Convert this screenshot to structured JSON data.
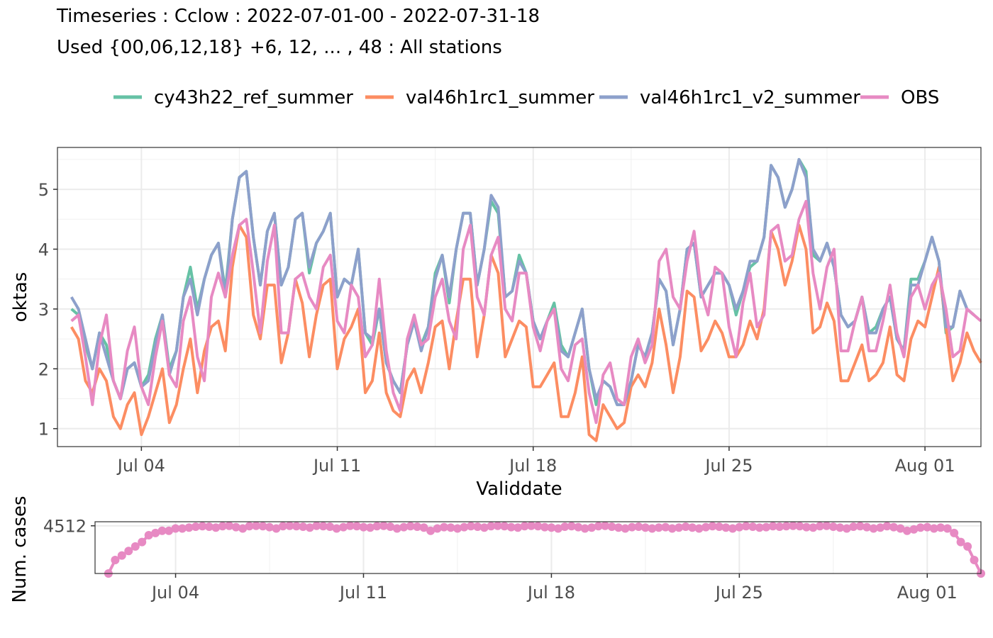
{
  "title": {
    "line1": "Timeseries : Cclow : 2022-07-01-00 - 2022-07-31-18",
    "line2": "Used {00,06,12,18} +6, 12, ... , 48 : All stations"
  },
  "legend": {
    "items": [
      {
        "name": "cy43h22_ref_summer",
        "color": "#66c2a5"
      },
      {
        "name": "val46h1rc1_summer",
        "color": "#fc8d62"
      },
      {
        "name": "val46h1rc1_v2_summer",
        "color": "#8da0cb"
      },
      {
        "name": "OBS",
        "color": "#e78ac3"
      }
    ]
  },
  "chart_data": [
    {
      "type": "line",
      "xlabel": "Validdate",
      "ylabel": "oktas",
      "ylim": [
        0.7,
        5.7
      ],
      "y_ticks": [
        1,
        2,
        3,
        4,
        5
      ],
      "x_ticks": [
        "Jul 04",
        "Jul 11",
        "Jul 18",
        "Jul 25",
        "Aug 01"
      ],
      "x": {
        "start": "2022-07-01T12:00",
        "step_hours": 6,
        "count": 130
      },
      "grid": true,
      "legend_position": "top",
      "series": [
        {
          "name": "cy43h22_ref_summer",
          "color": "#66c2a5",
          "values": [
            3.0,
            2.9,
            2.4,
            2.0,
            2.6,
            2.4,
            1.8,
            1.5,
            2.0,
            2.1,
            1.7,
            1.9,
            2.5,
            2.9,
            2.0,
            2.3,
            3.2,
            3.7,
            3.0,
            3.5,
            3.9,
            4.1,
            3.3,
            4.5,
            5.2,
            5.3,
            4.2,
            3.4,
            4.3,
            4.6,
            3.4,
            3.7,
            4.5,
            4.6,
            3.6,
            4.1,
            4.3,
            4.6,
            3.2,
            3.5,
            3.4,
            4.0,
            2.6,
            2.4,
            3.0,
            2.1,
            1.8,
            1.6,
            2.4,
            2.8,
            2.4,
            2.7,
            3.6,
            3.9,
            3.1,
            4.0,
            4.6,
            4.6,
            3.4,
            4.0,
            4.8,
            4.6,
            3.2,
            3.3,
            3.9,
            3.6,
            2.8,
            2.5,
            2.8,
            3.1,
            2.4,
            2.2,
            2.6,
            3.0,
            2.0,
            1.4,
            1.8,
            1.7,
            1.4,
            1.4,
            1.8,
            2.4,
            2.2,
            2.6,
            3.5,
            3.3,
            2.4,
            3.0,
            4.0,
            4.1,
            3.2,
            3.4,
            3.6,
            3.6,
            3.4,
            2.9,
            3.3,
            3.7,
            3.8,
            4.2,
            5.4,
            5.2,
            4.7,
            5.0,
            5.5,
            5.3,
            3.9,
            3.8,
            4.1,
            3.7,
            2.9,
            2.7,
            2.8,
            3.2,
            2.6,
            2.7,
            3.0,
            3.2,
            2.5,
            2.3,
            3.5,
            3.5,
            3.8,
            4.2,
            3.8,
            2.6,
            2.7,
            3.3,
            3.0,
            2.9
          ]
        },
        {
          "name": "val46h1rc1_summer",
          "color": "#fc8d62",
          "values": [
            2.7,
            2.5,
            1.8,
            1.6,
            2.0,
            1.8,
            1.2,
            1.0,
            1.4,
            1.6,
            0.9,
            1.2,
            1.6,
            2.0,
            1.1,
            1.4,
            2.0,
            2.5,
            1.6,
            2.3,
            2.7,
            2.8,
            2.3,
            3.7,
            4.4,
            4.2,
            2.9,
            2.5,
            3.4,
            3.4,
            2.1,
            2.6,
            3.5,
            3.1,
            2.2,
            2.9,
            3.4,
            3.5,
            2.0,
            2.5,
            2.7,
            3.0,
            1.6,
            1.8,
            2.6,
            1.6,
            1.3,
            1.2,
            1.8,
            2.0,
            1.6,
            2.1,
            2.7,
            2.8,
            2.0,
            2.8,
            3.5,
            3.5,
            2.2,
            2.9,
            3.9,
            3.6,
            2.2,
            2.5,
            2.8,
            2.7,
            1.7,
            1.7,
            1.9,
            2.1,
            1.2,
            1.2,
            1.6,
            2.2,
            0.9,
            0.8,
            1.4,
            1.2,
            1.0,
            1.1,
            1.7,
            1.9,
            1.7,
            2.1,
            3.0,
            2.4,
            1.6,
            2.2,
            3.3,
            3.2,
            2.3,
            2.5,
            2.8,
            2.6,
            2.2,
            2.2,
            2.4,
            2.8,
            2.5,
            3.0,
            4.3,
            4.0,
            3.4,
            3.8,
            4.4,
            4.0,
            2.6,
            2.7,
            3.1,
            2.8,
            1.8,
            1.8,
            2.1,
            2.4,
            1.8,
            1.9,
            2.1,
            2.7,
            1.9,
            1.8,
            2.5,
            2.8,
            2.7,
            3.2,
            3.7,
            2.7,
            1.8,
            2.1,
            2.6,
            2.3,
            2.1
          ]
        },
        {
          "name": "val46h1rc1_v2_summer",
          "color": "#8da0cb",
          "values": [
            3.2,
            3.0,
            2.5,
            2.0,
            2.6,
            2.2,
            1.8,
            1.5,
            2.0,
            2.1,
            1.7,
            1.8,
            2.4,
            2.9,
            1.9,
            2.3,
            3.2,
            3.5,
            2.9,
            3.5,
            3.9,
            4.1,
            3.2,
            4.5,
            5.2,
            5.3,
            4.2,
            3.4,
            4.3,
            4.6,
            3.4,
            3.7,
            4.5,
            4.6,
            3.7,
            4.1,
            4.3,
            4.6,
            3.2,
            3.5,
            3.4,
            4.0,
            2.6,
            2.5,
            3.0,
            2.1,
            1.8,
            1.6,
            2.4,
            2.8,
            2.3,
            2.7,
            3.5,
            3.9,
            3.2,
            4.0,
            4.6,
            4.6,
            3.4,
            4.0,
            4.9,
            4.7,
            3.2,
            3.3,
            3.8,
            3.6,
            2.8,
            2.5,
            2.8,
            3.0,
            2.3,
            2.2,
            2.6,
            3.0,
            2.0,
            1.5,
            1.8,
            1.7,
            1.4,
            1.4,
            1.8,
            2.4,
            2.2,
            2.6,
            3.5,
            3.3,
            2.4,
            3.0,
            4.0,
            4.1,
            3.2,
            3.4,
            3.6,
            3.6,
            3.4,
            3.0,
            3.3,
            3.8,
            3.8,
            4.2,
            5.4,
            5.2,
            4.7,
            5.0,
            5.5,
            5.2,
            4.0,
            3.8,
            4.1,
            3.7,
            2.9,
            2.7,
            2.8,
            3.2,
            2.6,
            2.6,
            3.0,
            3.2,
            2.5,
            2.3,
            3.4,
            3.4,
            3.8,
            4.2,
            3.8,
            2.7,
            2.7,
            3.3,
            3.0,
            2.9
          ]
        },
        {
          "name": "OBS",
          "color": "#e78ac3",
          "values": [
            2.8,
            2.9,
            2.2,
            1.4,
            2.4,
            2.9,
            1.8,
            1.5,
            2.3,
            2.7,
            1.7,
            1.4,
            2.2,
            2.8,
            1.9,
            1.7,
            2.8,
            3.2,
            2.2,
            1.8,
            3.2,
            3.6,
            3.2,
            3.9,
            4.4,
            4.5,
            3.6,
            2.6,
            3.8,
            4.4,
            2.6,
            2.6,
            3.5,
            3.6,
            3.2,
            3.0,
            3.7,
            3.9,
            2.8,
            2.6,
            3.4,
            3.2,
            2.2,
            2.4,
            3.5,
            2.3,
            1.6,
            1.3,
            2.5,
            2.9,
            2.4,
            2.5,
            3.2,
            3.5,
            2.8,
            2.5,
            4.0,
            4.4,
            3.2,
            2.9,
            3.9,
            4.2,
            3.0,
            2.8,
            3.6,
            3.6,
            2.7,
            2.3,
            2.8,
            3.0,
            2.0,
            1.8,
            2.4,
            2.5,
            1.6,
            1.1,
            1.9,
            2.1,
            1.5,
            1.4,
            2.2,
            2.5,
            2.1,
            2.4,
            3.8,
            4.0,
            3.2,
            3.0,
            3.8,
            4.3,
            3.3,
            2.9,
            3.7,
            3.6,
            2.7,
            2.2,
            3.1,
            3.6,
            2.7,
            2.9,
            4.3,
            4.4,
            3.8,
            3.9,
            4.5,
            4.8,
            3.6,
            3.0,
            3.7,
            4.0,
            2.3,
            2.3,
            2.8,
            3.2,
            2.3,
            2.3,
            2.8,
            3.4,
            2.6,
            2.2,
            3.2,
            3.4,
            3.0,
            3.4,
            3.6,
            3.0,
            2.2,
            2.3,
            3.0,
            2.9,
            2.8
          ]
        }
      ]
    },
    {
      "type": "line",
      "xlabel": "",
      "ylabel": "Num. cases",
      "y_ticks": [
        4512
      ],
      "ylim": [
        4300,
        4530
      ],
      "x_ticks": [
        "Jul 04",
        "Jul 11",
        "Jul 18",
        "Jul 25",
        "Aug 01"
      ],
      "x": {
        "start": "2022-07-01T12:00",
        "step_hours": 6,
        "count": 130
      },
      "grid": true,
      "series": [
        {
          "name": "OBS",
          "color": "#e78ac3",
          "values": [
            4300,
            4360,
            4380,
            4400,
            4420,
            4440,
            4470,
            4480,
            4490,
            4490,
            4500,
            4500,
            4504,
            4508,
            4510,
            4508,
            4504,
            4510,
            4512,
            4506,
            4500,
            4510,
            4512,
            4510,
            4506,
            4500,
            4510,
            4512,
            4510,
            4508,
            4504,
            4512,
            4510,
            4508,
            4500,
            4506,
            4512,
            4510,
            4506,
            4504,
            4510,
            4512,
            4508,
            4500,
            4506,
            4510,
            4508,
            4504,
            4490,
            4500,
            4506,
            4504,
            4500,
            4506,
            4510,
            4508,
            4504,
            4510,
            4512,
            4510,
            4506,
            4504,
            4510,
            4512,
            4510,
            4506,
            4504,
            4500,
            4508,
            4510,
            4506,
            4500,
            4504,
            4510,
            4512,
            4508,
            4504,
            4500,
            4506,
            4508,
            4504,
            4500,
            4504,
            4506,
            4500,
            4504,
            4508,
            4504,
            4500,
            4506,
            4510,
            4508,
            4504,
            4500,
            4506,
            4510,
            4508,
            4504,
            4506,
            4510,
            4508,
            4510,
            4512,
            4510,
            4506,
            4504,
            4510,
            4512,
            4508,
            4504,
            4500,
            4508,
            4510,
            4506,
            4500,
            4504,
            4510,
            4506,
            4500,
            4490,
            4496,
            4504,
            4506,
            4500,
            4504,
            4500,
            4480,
            4440,
            4420,
            4360,
            4300
          ]
        }
      ]
    }
  ]
}
